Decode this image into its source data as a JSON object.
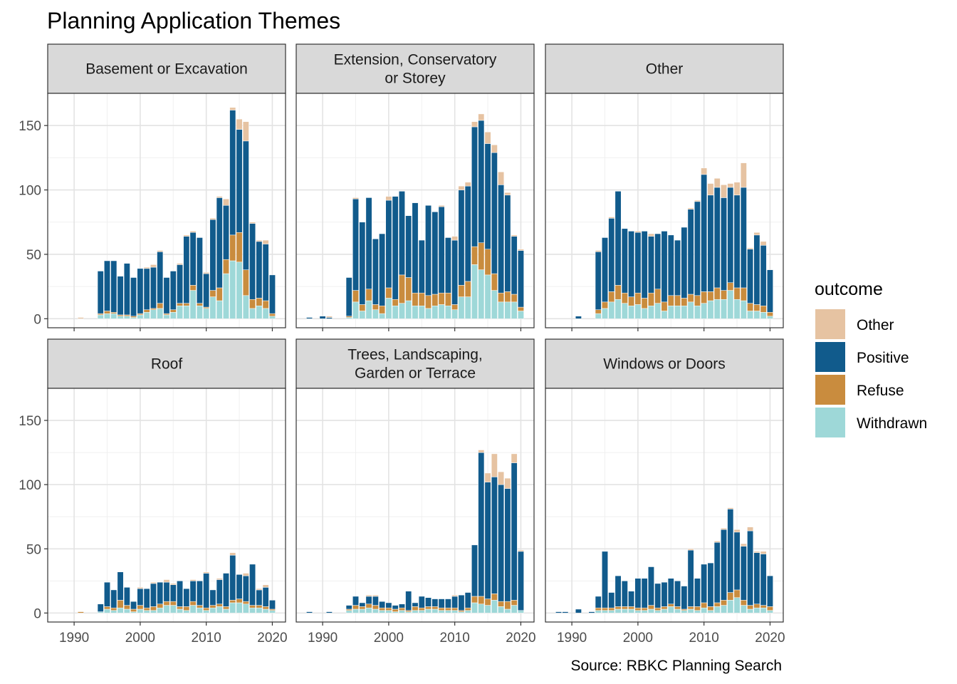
{
  "chart_data": {
    "type": "bar",
    "stacked": true,
    "title": "Planning Application Themes",
    "caption": "Source: RBKC Planning Search",
    "xlabel": "",
    "ylabel": "",
    "xlim": [
      1986,
      2022
    ],
    "ylim": [
      -7,
      175
    ],
    "x_ticks": [
      1990,
      2000,
      2010,
      2020
    ],
    "y_ticks": [
      0,
      50,
      100,
      150
    ],
    "grid": true,
    "legend": {
      "title": "outcome",
      "placement": "right",
      "entries": [
        "Other",
        "Positive",
        "Refuse",
        "Withdrawn"
      ]
    },
    "colors": {
      "Other": "#e6c3a2",
      "Positive": "#115b8c",
      "Refuse": "#c98c3e",
      "Withdrawn": "#9ed8d8"
    },
    "panels": [
      {
        "name": "Basement or Excavation",
        "title_lines": [
          "Basement or Excavation"
        ],
        "years": [
          1991,
          1994,
          1995,
          1996,
          1997,
          1998,
          1999,
          2000,
          2001,
          2002,
          2003,
          2004,
          2005,
          2006,
          2007,
          2008,
          2009,
          2010,
          2011,
          2012,
          2013,
          2014,
          2015,
          2016,
          2017,
          2018,
          2019,
          2020
        ],
        "series": {
          "Withdrawn": [
            0,
            3,
            4,
            4,
            2,
            2,
            1,
            3,
            5,
            7,
            8,
            3,
            5,
            10,
            10,
            22,
            10,
            8,
            17,
            14,
            35,
            45,
            44,
            18,
            8,
            10,
            8,
            2
          ],
          "Refuse": [
            0,
            1,
            2,
            1,
            1,
            1,
            1,
            1,
            2,
            1,
            4,
            1,
            2,
            2,
            2,
            4,
            2,
            1,
            5,
            10,
            11,
            20,
            23,
            20,
            7,
            6,
            6,
            2
          ],
          "Positive": [
            0,
            33,
            39,
            40,
            30,
            40,
            30,
            35,
            32,
            32,
            40,
            28,
            30,
            30,
            52,
            41,
            51,
            26,
            55,
            70,
            42,
            97,
            80,
            100,
            59,
            44,
            44,
            30
          ],
          "Other": [
            1,
            0,
            0,
            0,
            0,
            0,
            0,
            0,
            1,
            2,
            1,
            0,
            0,
            1,
            1,
            1,
            0,
            1,
            1,
            1,
            5,
            2,
            8,
            15,
            1,
            1,
            3,
            0
          ]
        }
      },
      {
        "name": "Extension, Conservatory or Storey",
        "title_lines": [
          "Extension, Conservatory",
          "or Storey"
        ],
        "years": [
          1988,
          1990,
          1991,
          1994,
          1995,
          1996,
          1997,
          1998,
          1999,
          2000,
          2001,
          2002,
          2003,
          2004,
          2005,
          2006,
          2007,
          2008,
          2009,
          2010,
          2011,
          2012,
          2013,
          2014,
          2015,
          2016,
          2017,
          2018,
          2019,
          2020
        ],
        "series": {
          "Withdrawn": [
            0,
            0,
            0,
            1,
            13,
            6,
            14,
            7,
            4,
            16,
            10,
            12,
            14,
            10,
            10,
            8,
            10,
            11,
            10,
            7,
            17,
            17,
            42,
            38,
            34,
            22,
            13,
            13,
            13,
            6
          ],
          "Refuse": [
            0,
            0,
            0,
            1,
            9,
            5,
            9,
            4,
            6,
            8,
            5,
            22,
            18,
            10,
            10,
            10,
            9,
            9,
            10,
            4,
            9,
            12,
            14,
            21,
            20,
            13,
            7,
            8,
            6,
            3
          ],
          "Positive": [
            1,
            2,
            1,
            30,
            71,
            64,
            71,
            51,
            56,
            68,
            80,
            65,
            48,
            70,
            41,
            70,
            64,
            67,
            43,
            50,
            74,
            74,
            93,
            95,
            82,
            94,
            84,
            75,
            45,
            44
          ],
          "Other": [
            0,
            0,
            1,
            0,
            1,
            0,
            0,
            0,
            0,
            3,
            0,
            0,
            0,
            0,
            0,
            0,
            0,
            1,
            0,
            3,
            3,
            3,
            4,
            5,
            9,
            6,
            10,
            2,
            1,
            1
          ]
        }
      },
      {
        "name": "Other",
        "title_lines": [
          "Other"
        ],
        "years": [
          1991,
          1994,
          1995,
          1996,
          1997,
          1998,
          1999,
          2000,
          2001,
          2002,
          2003,
          2004,
          2005,
          2006,
          2007,
          2008,
          2009,
          2010,
          2011,
          2012,
          2013,
          2014,
          2015,
          2016,
          2017,
          2018,
          2019,
          2020
        ],
        "series": {
          "Withdrawn": [
            0,
            4,
            8,
            13,
            15,
            12,
            10,
            11,
            8,
            10,
            12,
            6,
            10,
            10,
            10,
            13,
            10,
            12,
            14,
            15,
            15,
            22,
            15,
            14,
            6,
            6,
            5,
            2
          ],
          "Refuse": [
            0,
            3,
            5,
            8,
            11,
            8,
            7,
            9,
            8,
            10,
            11,
            7,
            8,
            8,
            6,
            6,
            8,
            9,
            7,
            9,
            7,
            6,
            9,
            10,
            6,
            5,
            5,
            3
          ],
          "Positive": [
            2,
            45,
            50,
            57,
            73,
            50,
            51,
            47,
            52,
            44,
            43,
            55,
            47,
            43,
            55,
            66,
            73,
            91,
            75,
            78,
            72,
            74,
            72,
            78,
            42,
            54,
            47,
            33
          ],
          "Other": [
            0,
            1,
            0,
            1,
            0,
            0,
            0,
            1,
            0,
            2,
            0,
            0,
            0,
            0,
            0,
            1,
            1,
            5,
            9,
            7,
            10,
            3,
            10,
            19,
            1,
            2,
            3,
            0
          ]
        }
      },
      {
        "name": "Roof",
        "title_lines": [
          "Roof"
        ],
        "years": [
          1991,
          1994,
          1995,
          1996,
          1997,
          1998,
          1999,
          2000,
          2001,
          2002,
          2003,
          2004,
          2005,
          2006,
          2007,
          2008,
          2009,
          2010,
          2011,
          2012,
          2013,
          2014,
          2015,
          2016,
          2017,
          2018,
          2019,
          2020
        ],
        "series": {
          "Withdrawn": [
            0,
            1,
            3,
            2,
            4,
            3,
            1,
            3,
            2,
            2,
            4,
            6,
            6,
            3,
            2,
            6,
            4,
            2,
            4,
            5,
            3,
            8,
            8,
            7,
            4,
            4,
            3,
            2
          ],
          "Refuse": [
            1,
            0,
            2,
            2,
            6,
            3,
            2,
            3,
            2,
            3,
            3,
            3,
            3,
            2,
            3,
            3,
            2,
            2,
            2,
            2,
            2,
            2,
            3,
            2,
            2,
            2,
            2,
            1
          ],
          "Positive": [
            0,
            6,
            19,
            14,
            22,
            14,
            6,
            13,
            15,
            18,
            17,
            15,
            13,
            20,
            14,
            16,
            19,
            27,
            12,
            19,
            26,
            35,
            19,
            20,
            32,
            12,
            15,
            7
          ],
          "Other": [
            0,
            0,
            0,
            0,
            0,
            0,
            0,
            1,
            0,
            1,
            0,
            2,
            1,
            0,
            0,
            1,
            0,
            1,
            0,
            1,
            0,
            2,
            0,
            2,
            0,
            1,
            2,
            0
          ]
        }
      },
      {
        "name": "Trees, Landscaping, Garden or Terrace",
        "title_lines": [
          "Trees, Landscaping,",
          "Garden or Terrace"
        ],
        "years": [
          1988,
          1991,
          1994,
          1995,
          1996,
          1997,
          1998,
          1999,
          2000,
          2001,
          2002,
          2003,
          2004,
          2005,
          2006,
          2007,
          2008,
          2009,
          2010,
          2011,
          2012,
          2013,
          2014,
          2015,
          2016,
          2017,
          2018,
          2019,
          2020
        ],
        "series": {
          "Withdrawn": [
            0,
            0,
            2,
            3,
            3,
            4,
            3,
            2,
            2,
            1,
            2,
            1,
            2,
            2,
            3,
            3,
            2,
            2,
            2,
            1,
            2,
            8,
            7,
            6,
            10,
            5,
            3,
            6,
            2
          ],
          "Refuse": [
            0,
            0,
            1,
            3,
            2,
            3,
            3,
            2,
            2,
            2,
            2,
            1,
            3,
            2,
            2,
            2,
            2,
            2,
            2,
            1,
            2,
            5,
            6,
            5,
            5,
            4,
            6,
            4,
            0
          ],
          "Positive": [
            1,
            1,
            3,
            7,
            3,
            6,
            7,
            5,
            4,
            3,
            3,
            15,
            3,
            9,
            7,
            6,
            7,
            7,
            9,
            12,
            12,
            40,
            112,
            91,
            91,
            91,
            88,
            107,
            46
          ],
          "Other": [
            0,
            0,
            0,
            0,
            0,
            1,
            1,
            0,
            0,
            0,
            0,
            0,
            0,
            0,
            0,
            0,
            0,
            0,
            1,
            0,
            0,
            0,
            2,
            7,
            18,
            10,
            8,
            7,
            1
          ]
        }
      },
      {
        "name": "Windows or Doors",
        "title_lines": [
          "Windows or Doors"
        ],
        "years": [
          1988,
          1989,
          1991,
          1993,
          1994,
          1995,
          1996,
          1997,
          1998,
          1999,
          2000,
          2001,
          2002,
          2003,
          2004,
          2005,
          2006,
          2007,
          2008,
          2009,
          2010,
          2011,
          2012,
          2013,
          2014,
          2015,
          2016,
          2017,
          2018,
          2019,
          2020
        ],
        "series": {
          "Withdrawn": [
            0,
            0,
            0,
            0,
            2,
            2,
            2,
            3,
            3,
            3,
            2,
            2,
            3,
            2,
            3,
            5,
            3,
            2,
            3,
            2,
            4,
            2,
            5,
            6,
            10,
            12,
            6,
            3,
            4,
            4,
            2
          ],
          "Refuse": [
            0,
            0,
            0,
            0,
            2,
            2,
            2,
            2,
            2,
            2,
            2,
            2,
            3,
            2,
            2,
            2,
            2,
            1,
            2,
            3,
            4,
            3,
            3,
            4,
            6,
            6,
            4,
            3,
            3,
            2,
            3
          ],
          "Positive": [
            1,
            1,
            3,
            1,
            9,
            44,
            12,
            24,
            20,
            12,
            23,
            23,
            30,
            19,
            19,
            20,
            20,
            18,
            44,
            22,
            30,
            34,
            47,
            55,
            65,
            45,
            42,
            58,
            40,
            40,
            24
          ],
          "Other": [
            0,
            0,
            0,
            0,
            0,
            0,
            0,
            0,
            0,
            0,
            0,
            0,
            0,
            0,
            0,
            0,
            0,
            0,
            1,
            0,
            0,
            0,
            1,
            1,
            1,
            2,
            2,
            3,
            1,
            2,
            0
          ]
        }
      }
    ]
  }
}
